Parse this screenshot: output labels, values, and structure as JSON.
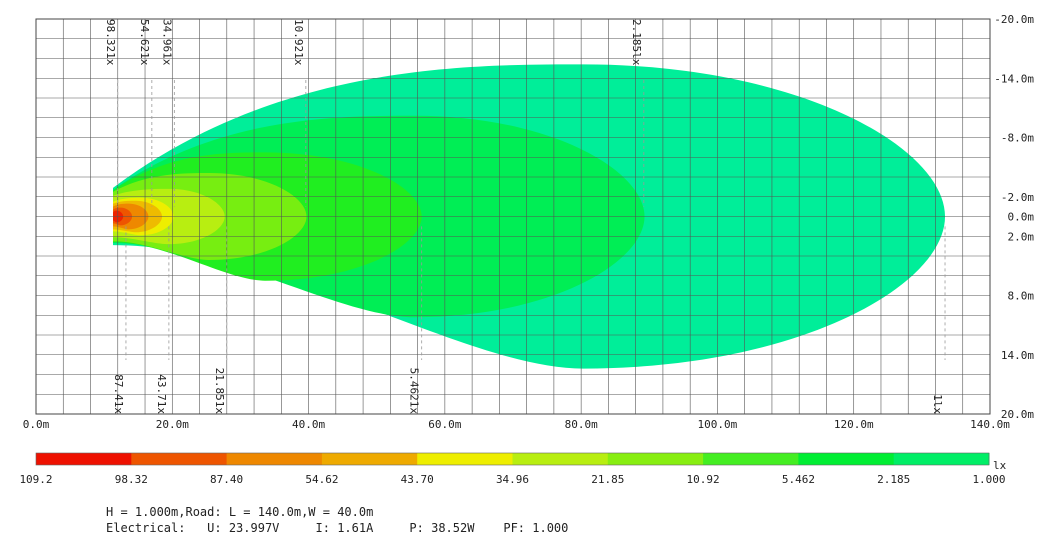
{
  "chart_data": {
    "type": "contour",
    "x_ticks": [
      "0.0m",
      "20.0m",
      "40.0m",
      "60.0m",
      "80.0m",
      "100.0m",
      "120.0m",
      "140.0m"
    ],
    "x_tick_values": [
      0,
      20,
      40,
      60,
      80,
      100,
      120,
      140
    ],
    "y_ticks": [
      "-20.0m",
      "-14.0m",
      "-8.0m",
      "-2.0m",
      "0.0m",
      "2.0m",
      "8.0m",
      "14.0m",
      "20.0m"
    ],
    "y_tick_values": [
      -20,
      -14,
      -8,
      -2,
      0,
      2,
      8,
      14,
      20
    ],
    "xlim": [
      0,
      140
    ],
    "ylim": [
      -20,
      20
    ],
    "grid": true,
    "light_source": {
      "x": 11.3,
      "y": 0
    },
    "contours": [
      {
        "level": 1.0,
        "label": "1lx",
        "color": "#00ee99",
        "xmin": 11.3,
        "xmax": 133.4,
        "x_widest": 80.3,
        "ymin": -15.4,
        "ymax": 15.4,
        "y_start": 2.9
      },
      {
        "level": 2.185,
        "label": "2.185lx",
        "color": "#00ee55",
        "xmin": 11.3,
        "xmax": 89.3,
        "x_widest": 55.5,
        "ymin": -10.2,
        "ymax": 10.2,
        "y_start": 2.7
      },
      {
        "level": 5.462,
        "label": "5.462lx",
        "color": "#20ee20",
        "xmin": 11.3,
        "xmax": 56.6,
        "x_widest": 33.6,
        "ymin": -6.5,
        "ymax": 6.5,
        "y_start": 2.6
      },
      {
        "level": 10.92,
        "label": "10.921x",
        "color": "#77ee11",
        "xmin": 11.3,
        "xmax": 39.7,
        "x_widest": 25.4,
        "ymin": -4.4,
        "ymax": 4.4,
        "y_start": 2.5
      },
      {
        "level": 21.85,
        "label": "21.851x",
        "color": "#b8ee11",
        "xmin": 11.3,
        "xmax": 27.7,
        "x_widest": 19.5,
        "ymin": -2.8,
        "ymax": 2.8,
        "y_start": 2.1
      },
      {
        "level": 34.96,
        "label": "34.961x",
        "color": "#eeee00",
        "xmin": 11.3,
        "xmax": 20.2,
        "x_widest": 15.4,
        "ymin": -1.9,
        "ymax": 1.9,
        "y_start": 1.5
      },
      {
        "level": 43.7,
        "label": "43.71x",
        "color": "#eebb00",
        "xmin": 11.3,
        "xmax": 18.5,
        "x_widest": 14.6,
        "ymin": -1.6,
        "ymax": 1.6,
        "y_start": 1.3
      },
      {
        "level": 54.62,
        "label": "54.621x",
        "color": "#ee8800",
        "xmin": 11.3,
        "xmax": 16.5,
        "x_widest": 13.6,
        "ymin": -1.3,
        "ymax": 1.3,
        "y_start": 1.0
      },
      {
        "level": 87.4,
        "label": "87.41x",
        "color": "#ee5500",
        "xmin": 11.3,
        "xmax": 14.1,
        "x_widest": 12.4,
        "ymin": -0.9,
        "ymax": 0.9,
        "y_start": 0.7
      },
      {
        "level": 98.32,
        "label": "98.321x",
        "color": "#ee2200",
        "xmin": 11.3,
        "xmax": 12.8,
        "x_widest": 11.8,
        "ymin": -0.6,
        "ymax": 0.6,
        "y_start": 0.4
      }
    ],
    "contour_labels": [
      {
        "text": "98.321x",
        "x": 12.0,
        "position": "top"
      },
      {
        "text": "54.621x",
        "x": 17.0,
        "position": "top"
      },
      {
        "text": "34.961x",
        "x": 20.3,
        "position": "top"
      },
      {
        "text": "10.921x",
        "x": 39.6,
        "position": "top"
      },
      {
        "text": "2.185lx",
        "x": 89.2,
        "position": "top"
      },
      {
        "text": "87.41x",
        "x": 13.2,
        "position": "bottom"
      },
      {
        "text": "43.71x",
        "x": 19.5,
        "position": "bottom"
      },
      {
        "text": "21.851x",
        "x": 28.0,
        "position": "bottom"
      },
      {
        "text": "5.4621x",
        "x": 56.6,
        "position": "bottom"
      },
      {
        "text": "1lx",
        "x": 133.4,
        "position": "bottom"
      }
    ],
    "legend": {
      "unit": "lx",
      "colors": [
        "#ee1100",
        "#ee5500",
        "#ee8800",
        "#eeaa00",
        "#eeee00",
        "#b8ee11",
        "#88ee11",
        "#44ee22",
        "#00ee33",
        "#00ee66",
        "#00ee99"
      ],
      "labels": [
        "109.2",
        "98.32",
        "87.40",
        "54.62",
        "43.70",
        "34.96",
        "21.85",
        "10.92",
        "5.462",
        "2.185",
        "1.000"
      ]
    }
  },
  "footer": {
    "line1": "H = 1.000m,Road: L = 140.0m,W = 40.0m",
    "line2": "Electrical:   U: 23.997V     I: 1.61A     P: 38.52W    PF: 1.000"
  }
}
